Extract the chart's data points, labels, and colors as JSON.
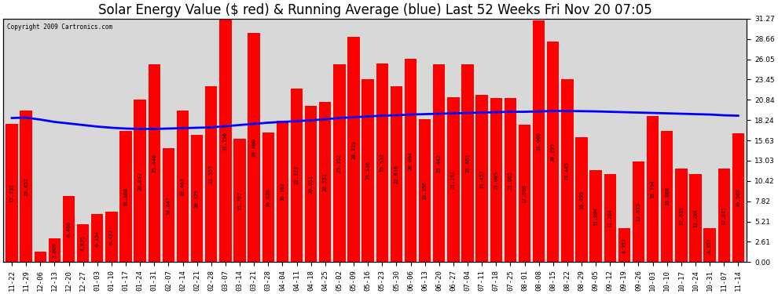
{
  "title": "Solar Energy Value ($ red) & Running Average (blue) Last 52 Weeks Fri Nov 20 07:05",
  "copyright": "Copyright 2009 Cartronics.com",
  "bar_color": "#ff0000",
  "avg_line_color": "#0000ff",
  "background_color": "#ffffff",
  "plot_bg_color": "#d8d8d8",
  "grid_color": "#ffffff",
  "categories": [
    "11-22",
    "11-29",
    "12-06",
    "12-13",
    "12-20",
    "12-27",
    "01-03",
    "01-10",
    "01-17",
    "01-24",
    "01-31",
    "02-07",
    "02-14",
    "02-21",
    "02-28",
    "03-07",
    "03-14",
    "03-21",
    "03-28",
    "04-04",
    "04-11",
    "04-18",
    "04-25",
    "05-02",
    "05-09",
    "05-16",
    "05-23",
    "05-30",
    "06-06",
    "06-13",
    "06-20",
    "06-27",
    "07-04",
    "07-11",
    "07-18",
    "07-25",
    "08-01",
    "08-08",
    "08-15",
    "08-22",
    "08-29",
    "09-05",
    "09-12",
    "09-19",
    "09-26",
    "10-03",
    "10-10",
    "10-17",
    "10-24",
    "10-31",
    "11-07",
    "11-14"
  ],
  "values": [
    17.732,
    19.452,
    1.369,
    3.009,
    8.466,
    4.875,
    6.154,
    6.472,
    16.808,
    20.842,
    25.446,
    14.647,
    19.463,
    16.375,
    22.553,
    31.156,
    15.787,
    29.46,
    16.626,
    18.102,
    22.323,
    20.051,
    20.551,
    25.352,
    28.919,
    23.516,
    25.532,
    22.616,
    26.094,
    18.358,
    25.442,
    21.193,
    25.403,
    21.457,
    21.085,
    21.065,
    17.598,
    31.066,
    28.295,
    23.445,
    16.059,
    11.804,
    11.284,
    4.357,
    12.915,
    18.794,
    16.868,
    12.019,
    11.284,
    4.357,
    12.015,
    16.568
  ],
  "running_avg": [
    18.5,
    18.55,
    18.3,
    18.0,
    17.8,
    17.6,
    17.4,
    17.25,
    17.15,
    17.1,
    17.1,
    17.15,
    17.2,
    17.25,
    17.3,
    17.45,
    17.6,
    17.75,
    17.9,
    18.0,
    18.1,
    18.2,
    18.35,
    18.5,
    18.6,
    18.7,
    18.8,
    18.85,
    18.95,
    19.0,
    19.05,
    19.1,
    19.15,
    19.2,
    19.25,
    19.3,
    19.3,
    19.35,
    19.4,
    19.4,
    19.38,
    19.35,
    19.3,
    19.25,
    19.2,
    19.15,
    19.1,
    19.05,
    19.0,
    18.95,
    18.85,
    18.8
  ],
  "yticks": [
    0.0,
    2.61,
    5.21,
    7.82,
    10.42,
    13.03,
    15.63,
    18.24,
    20.84,
    23.45,
    26.05,
    28.66,
    31.27
  ],
  "ylim": [
    0,
    31.27
  ],
  "title_fontsize": 12,
  "tick_fontsize": 6.5,
  "label_fontsize": 4.8
}
